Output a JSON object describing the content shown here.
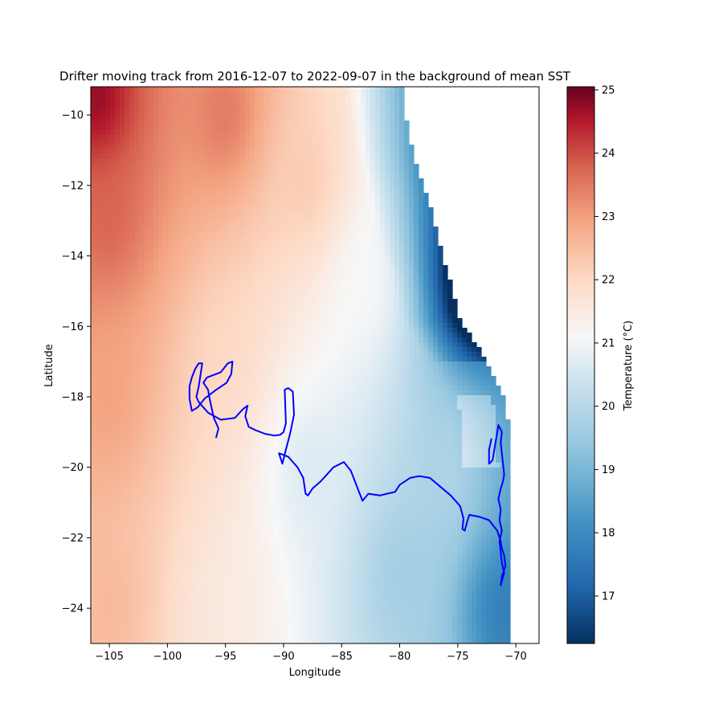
{
  "chart_data": {
    "type": "heatmap",
    "title": "Drifter moving track from 2016-12-07 to 2022-09-07 in the background of mean SST",
    "xlabel": "Longitude",
    "ylabel": "Latitude",
    "xlim": [
      -106.6,
      -68.0
    ],
    "ylim": [
      -25.0,
      -9.2
    ],
    "x_ticks": [
      -105,
      -100,
      -95,
      -90,
      -85,
      -80,
      -75,
      -70
    ],
    "x_tick_labels": [
      "−105",
      "−100",
      "−95",
      "−90",
      "−85",
      "−80",
      "−75",
      "−70"
    ],
    "y_ticks": [
      -24,
      -22,
      -20,
      -18,
      -16,
      -14,
      -12,
      -10
    ],
    "y_tick_labels": [
      "−24",
      "−22",
      "−20",
      "−18",
      "−16",
      "−14",
      "−12",
      "−10"
    ],
    "grid": false,
    "colormap": "RdBu_r",
    "colorbar": {
      "label": "Temperature (°C)",
      "range": [
        16.25,
        25.05
      ],
      "ticks": [
        17,
        18,
        19,
        20,
        21,
        22,
        23,
        24,
        25
      ],
      "tick_labels": [
        "17",
        "18",
        "19",
        "20",
        "21",
        "22",
        "23",
        "24",
        "25"
      ]
    },
    "sst_field_description_points": [
      {
        "lon": -106,
        "lat": -9.5,
        "sst": 24.9
      },
      {
        "lon": -105,
        "lat": -13,
        "sst": 23.8
      },
      {
        "lon": -105,
        "lat": -18,
        "sst": 23.0
      },
      {
        "lon": -105,
        "lat": -24,
        "sst": 22.6
      },
      {
        "lon": -95,
        "lat": -10,
        "sst": 23.6
      },
      {
        "lon": -95,
        "lat": -17,
        "sst": 22.0
      },
      {
        "lon": -95,
        "lat": -24,
        "sst": 21.5
      },
      {
        "lon": -88,
        "lat": -12,
        "sst": 22.3
      },
      {
        "lon": -88,
        "lat": -20,
        "sst": 20.6
      },
      {
        "lon": -83,
        "lat": -15,
        "sst": 21.1
      },
      {
        "lon": -80,
        "lat": -23,
        "sst": 19.6
      },
      {
        "lon": -75,
        "lat": -20,
        "sst": 19.9
      },
      {
        "lon": -74,
        "lat": -15,
        "sst": 17.0
      },
      {
        "lon": -72,
        "lat": -24,
        "sst": 18.2
      }
    ],
    "coastline": [
      [
        -79.8,
        -9.2
      ],
      [
        -79.5,
        -10.0
      ],
      [
        -79.0,
        -10.9
      ],
      [
        -78.4,
        -11.6
      ],
      [
        -77.6,
        -12.3
      ],
      [
        -76.8,
        -13.3
      ],
      [
        -76.2,
        -14.1
      ],
      [
        -75.4,
        -15.0
      ],
      [
        -74.8,
        -15.8
      ],
      [
        -73.8,
        -16.3
      ],
      [
        -72.8,
        -16.8
      ],
      [
        -72.0,
        -17.4
      ],
      [
        -71.1,
        -18.0
      ],
      [
        -70.7,
        -18.6
      ],
      [
        -70.6,
        -19.5
      ],
      [
        -70.4,
        -20.5
      ],
      [
        -70.3,
        -21.5
      ],
      [
        -70.3,
        -22.5
      ],
      [
        -70.5,
        -23.4
      ],
      [
        -70.6,
        -24.2
      ],
      [
        -70.6,
        -25.0
      ]
    ],
    "series": [
      {
        "name": "drifter track",
        "color": "#0000ff",
        "x": [
          -95.8,
          -95.6,
          -96.0,
          -96.2,
          -96.4,
          -96.5,
          -96.9,
          -96.6,
          -95.4,
          -94.8,
          -94.4,
          -94.5,
          -94.9,
          -95.8,
          -96.8,
          -97.4,
          -97.9,
          -98.1,
          -98.1,
          -97.9,
          -97.6,
          -97.3,
          -97.0,
          -97.3,
          -97.5,
          -97.3,
          -96.5,
          -95.4,
          -94.2,
          -93.5,
          -93.1,
          -93.3,
          -93.0,
          -92.4,
          -91.6,
          -90.8,
          -90.3,
          -90.0,
          -89.8,
          -89.9,
          -89.6,
          -89.2,
          -89.1,
          -89.4,
          -89.8,
          -90.1,
          -90.4,
          -89.6,
          -88.8,
          -88.3,
          -88.1,
          -87.9,
          -87.5,
          -86.8,
          -85.7,
          -84.8,
          -84.2,
          -83.5,
          -83.2,
          -82.7,
          -81.7,
          -81.1,
          -80.4,
          -80.0,
          -79.1,
          -78.3,
          -77.4,
          -76.5,
          -75.6,
          -74.8,
          -74.5,
          -74.6,
          -74.4,
          -74.2,
          -74.0,
          -73.2,
          -72.3,
          -71.6,
          -71.3,
          -71.2,
          -71.0,
          -70.9,
          -71.2,
          -71.3,
          -71.0,
          -71.2,
          -71.3,
          -71.4,
          -71.2,
          -71.4,
          -71.3,
          -71.5,
          -71.3,
          -71.1,
          -71.0,
          -71.1,
          -71.2,
          -71.3,
          -71.2,
          -71.5,
          -72.0,
          -72.3,
          -72.3,
          -72.1
        ],
        "y": [
          -19.15,
          -18.9,
          -18.6,
          -18.3,
          -18.0,
          -17.8,
          -17.6,
          -17.45,
          -17.3,
          -17.05,
          -17.0,
          -17.35,
          -17.6,
          -17.8,
          -18.05,
          -18.3,
          -18.4,
          -18.05,
          -17.7,
          -17.45,
          -17.2,
          -17.05,
          -17.05,
          -17.7,
          -18.0,
          -18.15,
          -18.45,
          -18.65,
          -18.6,
          -18.35,
          -18.25,
          -18.55,
          -18.85,
          -18.95,
          -19.05,
          -19.1,
          -19.08,
          -19.0,
          -18.75,
          -17.8,
          -17.75,
          -17.85,
          -18.5,
          -19.0,
          -19.5,
          -19.9,
          -19.6,
          -19.7,
          -20.0,
          -20.3,
          -20.75,
          -20.8,
          -20.6,
          -20.4,
          -20.0,
          -19.85,
          -20.1,
          -20.7,
          -20.95,
          -20.75,
          -20.8,
          -20.75,
          -20.7,
          -20.5,
          -20.3,
          -20.25,
          -20.3,
          -20.55,
          -20.8,
          -21.1,
          -21.45,
          -21.75,
          -21.8,
          -21.55,
          -21.35,
          -21.4,
          -21.5,
          -21.8,
          -22.1,
          -22.3,
          -22.5,
          -22.8,
          -23.1,
          -23.35,
          -23.0,
          -22.7,
          -22.4,
          -22.1,
          -21.8,
          -21.5,
          -21.2,
          -20.9,
          -20.6,
          -20.4,
          -20.2,
          -19.9,
          -19.6,
          -19.3,
          -19.0,
          -18.8,
          -19.8,
          -19.9,
          -19.5,
          -19.2
        ]
      }
    ]
  }
}
